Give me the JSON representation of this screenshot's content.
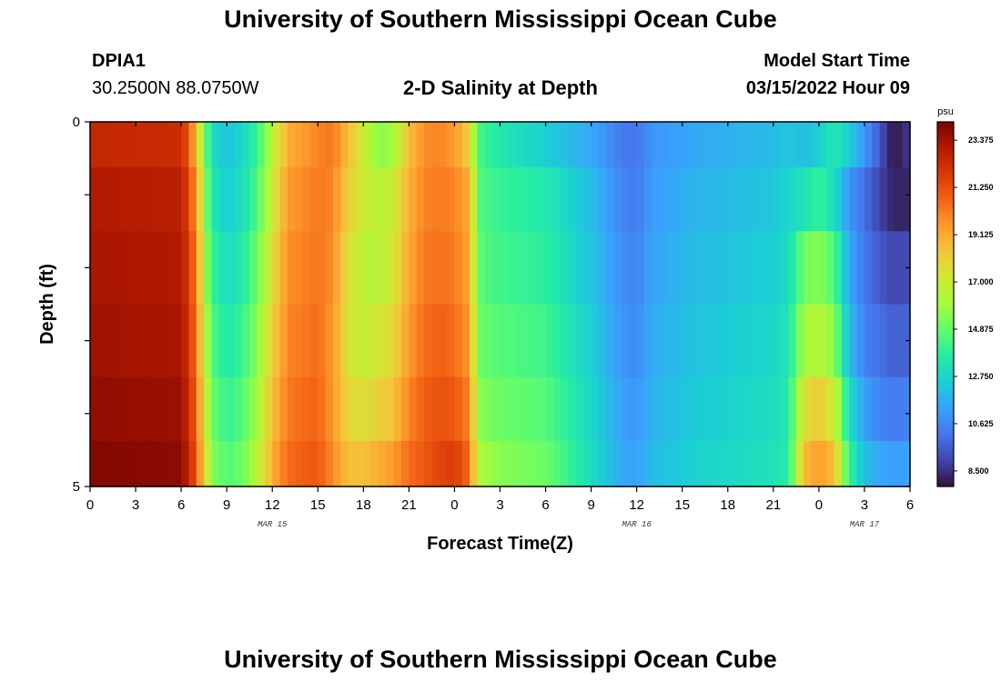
{
  "page": {
    "title_top": "University of Southern Mississippi Ocean Cube",
    "title_bottom": "University of Southern Mississippi Ocean Cube",
    "station_id": "DPIA1",
    "station_coords": "30.2500N  88.0750W",
    "plot_title": "2-D Salinity at Depth",
    "model_start_label": "Model Start Time",
    "model_start_value": "03/15/2022 Hour 09"
  },
  "colors": {
    "colormap": [
      "#30123b",
      "#4145ab",
      "#4675ed",
      "#39a2fc",
      "#1bcfd4",
      "#24eca6",
      "#61fc6c",
      "#a4fc3b",
      "#d1e834",
      "#f3c63a",
      "#fe9b2d",
      "#f36315",
      "#d93806",
      "#b11901",
      "#7a0402"
    ]
  },
  "chart_data": {
    "type": "heatmap",
    "title": "2-D Salinity at Depth",
    "xlabel": "Forecast Time(Z)",
    "ylabel": "Depth (ft)",
    "x_tick_labels": [
      "0",
      "3",
      "6",
      "9",
      "12",
      "15",
      "18",
      "21",
      "0",
      "3",
      "6",
      "9",
      "12",
      "15",
      "18",
      "21",
      "0",
      "3",
      "6"
    ],
    "x_range_hours": [
      0,
      54
    ],
    "date_labels": [
      {
        "text": "MAR 15",
        "hour": 12
      },
      {
        "text": "MAR 16",
        "hour": 36
      },
      {
        "text": "MAR 17",
        "hour": 51
      }
    ],
    "y_tick_labels": [
      "0",
      "5"
    ],
    "ylim": [
      0,
      5
    ],
    "colorbar": {
      "unit": "psu",
      "min": 7.8,
      "max": 24.2,
      "tick_labels": [
        "23.375",
        "21.250",
        "19.125",
        "17.000",
        "14.875",
        "12.750",
        "10.625",
        "8.500"
      ],
      "tick_values": [
        23.375,
        21.25,
        19.125,
        17.0,
        14.875,
        12.75,
        10.625,
        8.5
      ]
    },
    "depth_bins_ft": [
      0.25,
      1.0,
      2.0,
      3.0,
      4.0,
      4.75
    ],
    "x_hours": [
      0,
      6,
      6.5,
      7,
      7.5,
      8,
      9,
      10,
      11,
      12,
      13,
      14,
      15,
      16,
      17,
      18,
      19,
      20,
      21,
      22,
      23,
      24,
      25,
      25.5,
      26,
      27,
      30,
      33,
      35,
      36,
      37,
      40,
      45,
      46,
      47,
      48,
      49,
      50,
      51,
      52,
      52.5,
      53,
      54
    ],
    "salinity_rows": [
      [
        22.5,
        22.3,
        21.0,
        18.5,
        15.5,
        13.0,
        12.2,
        12.8,
        14.0,
        16.5,
        19.0,
        19.5,
        20.0,
        20.3,
        18.5,
        17.0,
        15.5,
        16.0,
        18.5,
        19.8,
        20.0,
        19.5,
        18.0,
        14.5,
        14.0,
        13.5,
        12.5,
        11.5,
        10.3,
        10.2,
        11.0,
        11.5,
        12.0,
        12.3,
        12.0,
        12.5,
        13.5,
        12.5,
        11.0,
        9.5,
        8.5,
        7.9,
        8.8
      ],
      [
        23.0,
        22.8,
        21.5,
        19.5,
        16.0,
        13.5,
        12.5,
        13.0,
        14.5,
        17.0,
        19.5,
        19.8,
        20.2,
        20.0,
        18.0,
        17.0,
        16.5,
        17.0,
        19.0,
        20.0,
        20.2,
        20.0,
        19.0,
        14.8,
        14.3,
        14.0,
        13.5,
        12.0,
        10.6,
        10.3,
        11.2,
        11.8,
        12.3,
        12.8,
        13.2,
        14.0,
        13.0,
        11.0,
        10.0,
        9.0,
        8.5,
        8.2,
        8.3
      ],
      [
        23.2,
        23.0,
        21.8,
        20.0,
        16.5,
        14.0,
        13.0,
        13.5,
        15.0,
        17.5,
        19.8,
        20.0,
        20.3,
        19.8,
        17.5,
        16.5,
        16.5,
        17.3,
        19.2,
        20.2,
        20.4,
        20.2,
        19.2,
        15.0,
        14.5,
        14.2,
        13.8,
        12.2,
        10.8,
        10.5,
        11.4,
        12.0,
        12.5,
        13.0,
        15.0,
        15.5,
        14.5,
        11.5,
        10.2,
        9.5,
        9.2,
        9.0,
        9.2
      ],
      [
        23.4,
        23.2,
        22.0,
        20.3,
        17.0,
        14.5,
        13.5,
        14.0,
        15.5,
        18.0,
        20.0,
        20.2,
        20.5,
        19.5,
        17.3,
        16.8,
        17.2,
        17.8,
        19.5,
        20.5,
        20.8,
        20.5,
        19.5,
        15.2,
        14.8,
        14.6,
        14.2,
        12.5,
        11.0,
        10.7,
        11.6,
        12.2,
        12.8,
        13.3,
        16.0,
        16.5,
        15.5,
        12.0,
        10.5,
        10.0,
        9.8,
        9.6,
        9.8
      ],
      [
        23.7,
        23.5,
        22.3,
        20.6,
        17.5,
        15.0,
        14.0,
        14.5,
        16.0,
        18.5,
        20.2,
        20.5,
        20.7,
        19.5,
        17.8,
        17.5,
        18.0,
        18.5,
        20.0,
        20.8,
        21.2,
        21.0,
        20.0,
        15.8,
        15.3,
        15.0,
        14.6,
        12.8,
        11.3,
        11.0,
        11.8,
        12.4,
        13.0,
        13.5,
        17.5,
        18.2,
        17.0,
        13.0,
        11.2,
        10.6,
        10.4,
        10.3,
        10.5
      ],
      [
        24.0,
        23.8,
        22.5,
        21.0,
        18.0,
        15.5,
        14.5,
        15.0,
        16.5,
        19.0,
        20.5,
        20.8,
        21.0,
        19.8,
        18.5,
        18.5,
        19.0,
        19.5,
        20.5,
        21.0,
        21.5,
        21.8,
        20.5,
        16.5,
        16.0,
        15.5,
        15.0,
        13.0,
        11.5,
        11.3,
        12.0,
        12.6,
        13.2,
        13.7,
        18.5,
        19.5,
        18.5,
        14.0,
        12.0,
        11.5,
        11.3,
        11.2,
        11.4
      ]
    ]
  }
}
